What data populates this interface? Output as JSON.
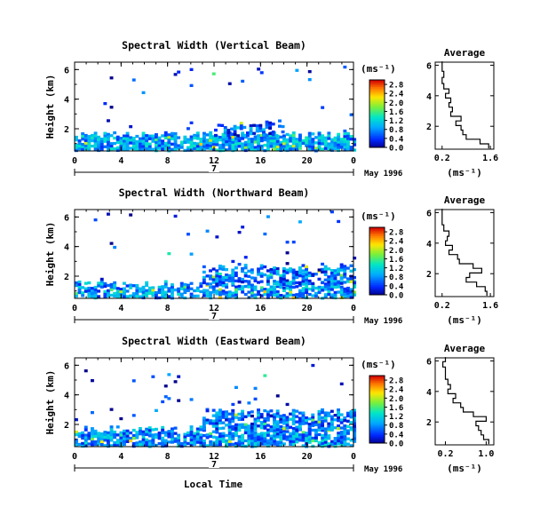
{
  "chart_data": [
    {
      "type": "heatmap",
      "title": "Spectral Width (Vertical Beam)",
      "ylabel": "Height (km)",
      "x_ticks": [
        "0",
        "4",
        "8",
        "12",
        "16",
        "20",
        "0"
      ],
      "y_ticks": [
        "2",
        "4",
        "6"
      ],
      "xlim": [
        0,
        24
      ],
      "ylim": [
        0.5,
        6.5
      ],
      "date_label": "7",
      "month_label": "May 1996",
      "colorbar": {
        "unit": "(ms⁻¹)",
        "ticks": [
          "0.0",
          "0.4",
          "0.8",
          "1.2",
          "1.6",
          "2.0",
          "2.4",
          "2.8"
        ],
        "range": [
          0,
          3.0
        ]
      },
      "echo_layers": [
        {
          "x0": 0,
          "x1": 24,
          "bottom": 0.6,
          "top": 1.6,
          "density": 0.85,
          "mean": 0.9
        },
        {
          "x0": 12,
          "x1": 18,
          "bottom": 1.6,
          "top": 2.4,
          "density": 0.55,
          "mean": 0.6
        },
        {
          "x0": 0,
          "x1": 24,
          "bottom": 1.6,
          "top": 6.3,
          "density": 0.01,
          "mean": 0.4
        }
      ],
      "profile": {
        "title": "Average",
        "xlabel": "(ms⁻¹)",
        "x_ticks": [
          "0.2",
          "1.6"
        ],
        "y_ticks": [
          "2",
          "4",
          "6"
        ],
        "xlim": [
          0.0,
          1.7
        ],
        "ylim": [
          0.5,
          6.2
        ],
        "heights": [
          0.7,
          1.0,
          1.3,
          1.6,
          1.9,
          2.2,
          2.5,
          2.8,
          3.1,
          3.4,
          3.7,
          4.0,
          4.3,
          4.6,
          5.0,
          5.4,
          5.8,
          6.1
        ],
        "widths": [
          1.55,
          1.3,
          0.9,
          0.8,
          0.75,
          0.6,
          0.75,
          0.45,
          0.5,
          0.4,
          0.45,
          0.3,
          0.4,
          0.25,
          0.2,
          0.25,
          0.2,
          0.2
        ]
      }
    },
    {
      "type": "heatmap",
      "title": "Spectral Width (Northward Beam)",
      "ylabel": "Height (km)",
      "x_ticks": [
        "0",
        "4",
        "8",
        "12",
        "16",
        "20",
        "0"
      ],
      "y_ticks": [
        "2",
        "4",
        "6"
      ],
      "xlim": [
        0,
        24
      ],
      "ylim": [
        0.5,
        6.5
      ],
      "date_label": "7",
      "month_label": "May 1996",
      "colorbar": {
        "unit": "(ms⁻¹)",
        "ticks": [
          "0.0",
          "0.4",
          "0.8",
          "1.2",
          "1.6",
          "2.0",
          "2.4",
          "2.8"
        ],
        "range": [
          0,
          3.0
        ]
      },
      "echo_layers": [
        {
          "x0": 0,
          "x1": 24,
          "bottom": 0.6,
          "top": 1.5,
          "density": 0.7,
          "mean": 0.8
        },
        {
          "x0": 11,
          "x1": 24,
          "bottom": 1.5,
          "top": 2.7,
          "density": 0.6,
          "mean": 0.7
        },
        {
          "x0": 0,
          "x1": 24,
          "bottom": 1.5,
          "top": 6.3,
          "density": 0.015,
          "mean": 0.4
        }
      ],
      "profile": {
        "title": "Average",
        "xlabel": "(ms⁻¹)",
        "x_ticks": [
          "0.2",
          "1.6"
        ],
        "y_ticks": [
          "2",
          "4",
          "6"
        ],
        "xlim": [
          0.0,
          1.7
        ],
        "ylim": [
          0.5,
          6.2
        ],
        "heights": [
          0.7,
          1.0,
          1.3,
          1.6,
          1.9,
          2.2,
          2.5,
          2.8,
          3.1,
          3.4,
          3.7,
          4.0,
          4.3,
          4.6,
          5.0,
          5.4,
          5.8,
          6.1
        ],
        "widths": [
          1.5,
          1.45,
          1.2,
          0.9,
          1.0,
          1.35,
          1.1,
          0.7,
          0.65,
          0.4,
          0.5,
          0.3,
          0.35,
          0.4,
          0.25,
          0.2,
          0.2,
          0.2
        ]
      }
    },
    {
      "type": "heatmap",
      "title": "Spectral Width (Eastward Beam)",
      "ylabel": "Height (km)",
      "x_ticks": [
        "0",
        "4",
        "8",
        "12",
        "16",
        "20",
        "0"
      ],
      "y_ticks": [
        "2",
        "4",
        "6"
      ],
      "xlim": [
        0,
        24
      ],
      "ylim": [
        0.5,
        6.5
      ],
      "date_label": "7",
      "month_label": "May 1996",
      "xlabel": "Local Time",
      "colorbar": {
        "unit": "(ms⁻¹)",
        "ticks": [
          "0.0",
          "0.4",
          "0.8",
          "1.2",
          "1.6",
          "2.0",
          "2.4",
          "2.8"
        ],
        "range": [
          0,
          3.0
        ]
      },
      "echo_layers": [
        {
          "x0": 0,
          "x1": 24,
          "bottom": 0.6,
          "top": 1.7,
          "density": 0.75,
          "mean": 0.8
        },
        {
          "x0": 11,
          "x1": 24,
          "bottom": 1.7,
          "top": 2.9,
          "density": 0.65,
          "mean": 0.7
        },
        {
          "x0": 0,
          "x1": 24,
          "bottom": 1.7,
          "top": 6.3,
          "density": 0.015,
          "mean": 0.4
        }
      ],
      "profile": {
        "title": "Average",
        "xlabel": "(ms⁻¹)",
        "x_ticks": [
          "0.2",
          "1.0"
        ],
        "y_ticks": [
          "2",
          "4",
          "6"
        ],
        "xlim": [
          0.0,
          1.15
        ],
        "ylim": [
          0.5,
          6.2
        ],
        "heights": [
          0.7,
          1.0,
          1.3,
          1.6,
          1.9,
          2.2,
          2.5,
          2.8,
          3.1,
          3.4,
          3.7,
          4.0,
          4.3,
          4.6,
          5.0,
          5.4,
          5.8,
          6.1
        ],
        "widths": [
          1.05,
          0.95,
          0.9,
          0.85,
          0.8,
          1.0,
          0.75,
          0.55,
          0.5,
          0.35,
          0.4,
          0.25,
          0.3,
          0.25,
          0.2,
          0.2,
          0.15,
          0.2
        ]
      }
    }
  ]
}
